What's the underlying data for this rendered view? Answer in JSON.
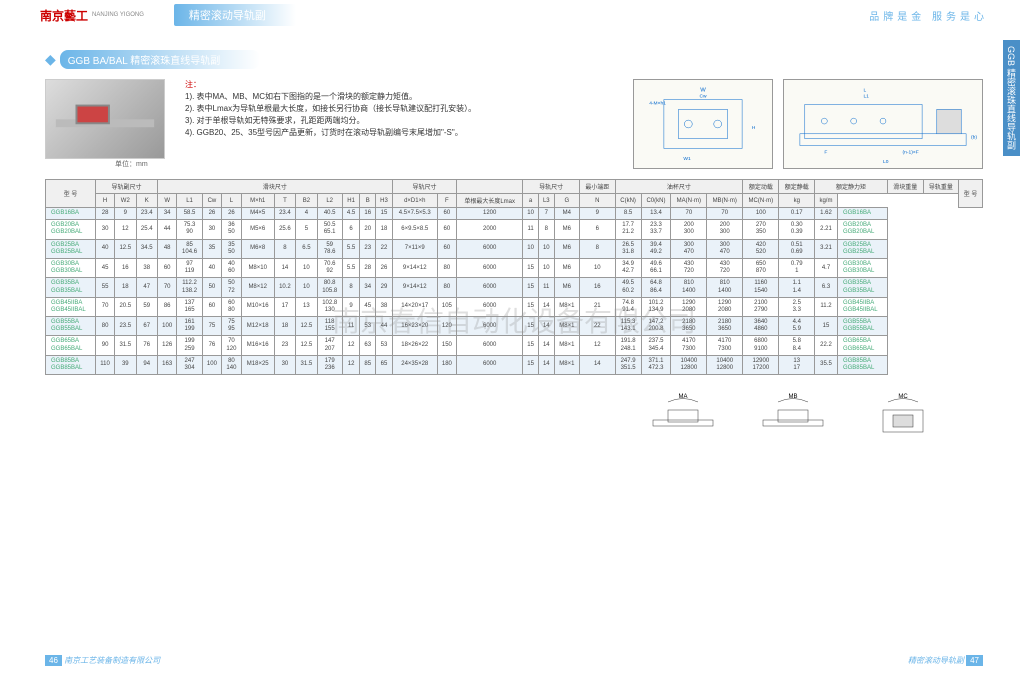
{
  "header": {
    "logo": "南京藝工",
    "logo_sub": "NANJING YIGONG",
    "title": "精密滚动导轨副",
    "tagline": "品牌是金 服务是心"
  },
  "section_label": "GGB 精密滚珠直线导轨副",
  "product_title": "GGB BA/BAL 精密滚珠直线导轨副",
  "unit": "单位：mm",
  "notes": {
    "title": "注：",
    "n1": "1). 表中MA、MB、MC如右下图指的是一个滑块的额定静力矩值。",
    "n2": "2). 表中Lmax为导轨单根最大长度，如接长另行协商（接长导轨建议配打孔安装）。",
    "n3": "3). 对于单根导轨如无特殊要求，孔距距两端均分。",
    "n4": "4). GGB20、25、35型号因产品更新，订货时在滚动导轨副编号末尾增加\"-S\"。"
  },
  "table": {
    "group_headers": [
      "型 号",
      "导轨副尺寸",
      "滑块尺寸",
      "导轨尺寸",
      "",
      "导轨尺寸",
      "最小端距",
      "油杯尺寸",
      "额定动载",
      "额定静载",
      "额定静力矩",
      "滑块重量",
      "导轨重量",
      "型 号"
    ],
    "cols": [
      "H",
      "W2",
      "K",
      "W",
      "L1",
      "Cw",
      "L",
      "M×h1",
      "T",
      "B2",
      "L2",
      "H1",
      "B",
      "H3",
      "d×D1×h",
      "F",
      "单根最大长度Lmax",
      "a",
      "L3",
      "G",
      "N",
      "C(kN)",
      "C0(kN)",
      "MA(N·m)",
      "MB(N·m)",
      "MC(N·m)",
      "kg",
      "kg/m"
    ],
    "rows": [
      {
        "m": "GGB16BA",
        "v": [
          "28",
          "9",
          "23.4",
          "34",
          "58.5",
          "26",
          "26",
          "M4×5",
          "23.4",
          "4",
          "40.5",
          "4.5",
          "16",
          "15",
          "4.5×7.5×5.3",
          "60",
          "1200",
          "10",
          "7",
          "M4",
          "9",
          "8.5",
          "13.4",
          "70",
          "70",
          "100",
          "0.17",
          "1.62"
        ],
        "m2": "GGB16BA"
      },
      {
        "m": "GGB20BA\nGGB20BAL",
        "v": [
          "30",
          "12",
          "25.4",
          "44",
          "75.3\n90",
          "30",
          "36\n50",
          "M5×6",
          "25.6",
          "5",
          "50.5\n65.1",
          "6",
          "20",
          "18",
          "6×9.5×8.5",
          "60",
          "2000",
          "11",
          "8",
          "M6",
          "6",
          "17.7\n21.2",
          "23.3\n33.7",
          "200\n300",
          "200\n300",
          "270\n350",
          "0.30\n0.39",
          "2.21"
        ],
        "m2": "GGB20BA\nGGB20BAL"
      },
      {
        "m": "GGB25BA\nGGB25BAL",
        "v": [
          "40",
          "12.5",
          "34.5",
          "48",
          "85\n104.6",
          "35",
          "35\n50",
          "M6×8",
          "8",
          "6.5",
          "59\n78.6",
          "5.5",
          "23",
          "22",
          "7×11×9",
          "60",
          "6000",
          "10",
          "10",
          "M6",
          "8",
          "26.5\n31.8",
          "39.4\n49.2",
          "300\n470",
          "300\n470",
          "420\n520",
          "0.51\n0.69",
          "3.21"
        ],
        "m2": "GGB25BA\nGGB25BAL"
      },
      {
        "m": "GGB30BA\nGGB30BAL",
        "v": [
          "45",
          "16",
          "38",
          "60",
          "97\n119",
          "40",
          "40\n60",
          "M8×10",
          "14",
          "10",
          "70.6\n92",
          "5.5",
          "28",
          "26",
          "9×14×12",
          "80",
          "6000",
          "15",
          "10",
          "M6",
          "10",
          "34.9\n42.7",
          "49.6\n66.1",
          "430\n720",
          "430\n720",
          "650\n870",
          "0.79\n1",
          "4.7"
        ],
        "m2": "GGB30BA\nGGB30BAL"
      },
      {
        "m": "GGB35BA\nGGB35BAL",
        "v": [
          "55",
          "18",
          "47",
          "70",
          "112.2\n138.2",
          "50",
          "50\n72",
          "M8×12",
          "10.2",
          "10",
          "80.8\n105.8",
          "8",
          "34",
          "29",
          "9×14×12",
          "80",
          "6000",
          "15",
          "11",
          "M6",
          "16",
          "49.5\n60.2",
          "64.8\n86.4",
          "810\n1400",
          "810\n1400",
          "1160\n1540",
          "1.1\n1.4",
          "6.3"
        ],
        "m2": "GGB35BA\nGGB35BAL"
      },
      {
        "m": "GGB45IIBA\nGGB45IIBAL",
        "v": [
          "70",
          "20.5",
          "59",
          "86",
          "137\n165",
          "60",
          "60\n80",
          "M10×16",
          "17",
          "13",
          "102.8\n130",
          "9",
          "45",
          "38",
          "14×20×17",
          "105",
          "6000",
          "15",
          "14",
          "M8×1",
          "21",
          "74.8\n91.4",
          "101.2\n134.9",
          "1290\n2080",
          "1290\n2080",
          "2100\n2790",
          "2.5\n3.3",
          "11.2"
        ],
        "m2": "GGB45IIBA\nGGB45IIBAL"
      },
      {
        "m": "GGB55BA\nGGB55BAL",
        "v": [
          "80",
          "23.5",
          "67",
          "100",
          "161\n199",
          "75",
          "75\n95",
          "M12×18",
          "18",
          "12.5",
          "118\n155",
          "11",
          "53",
          "44",
          "16×23×20",
          "120",
          "6000",
          "15",
          "14",
          "M8×1",
          "22",
          "115.3\n143.1",
          "147.2\n200.8",
          "2180\n3650",
          "2180\n3650",
          "3640\n4860",
          "4.4\n5.9",
          "15"
        ],
        "m2": "GGB55BA\nGGB55BAL"
      },
      {
        "m": "GGB65BA\nGGB65BAL",
        "v": [
          "90",
          "31.5",
          "76",
          "126",
          "199\n259",
          "76",
          "70\n120",
          "M16×16",
          "23",
          "12.5",
          "147\n207",
          "12",
          "63",
          "53",
          "18×26×22",
          "150",
          "6000",
          "15",
          "14",
          "M8×1",
          "12",
          "191.8\n248.1",
          "237.5\n345.4",
          "4170\n7300",
          "4170\n7300",
          "6800\n9100",
          "5.8\n8.4",
          "22.2"
        ],
        "m2": "GGB65BA\nGGB65BAL"
      },
      {
        "m": "GGB85BA\nGGB85BAL",
        "v": [
          "110",
          "39",
          "94",
          "163",
          "247\n304",
          "100",
          "80\n140",
          "M18×25",
          "30",
          "31.5",
          "179\n236",
          "12",
          "85",
          "65",
          "24×35×28",
          "180",
          "6000",
          "15",
          "14",
          "M8×1",
          "14",
          "247.9\n351.5",
          "371.1\n472.3",
          "10400\n12800",
          "10400\n12800",
          "12900\n17200",
          "13\n17",
          "35.5"
        ],
        "m2": "GGB85BA\nGGB85BAL"
      }
    ]
  },
  "watermark": "南京春信自动化设备有限公司",
  "footer": {
    "left_page": "46",
    "left_text": "南京工艺装备制造有限公司",
    "right_text": "精密滚动导轨副",
    "right_page": "47"
  },
  "diag_labels": [
    "MA",
    "MB",
    "MC"
  ],
  "colors": {
    "accent": "#6bb5e8",
    "alt_row": "#eaf2f9"
  }
}
